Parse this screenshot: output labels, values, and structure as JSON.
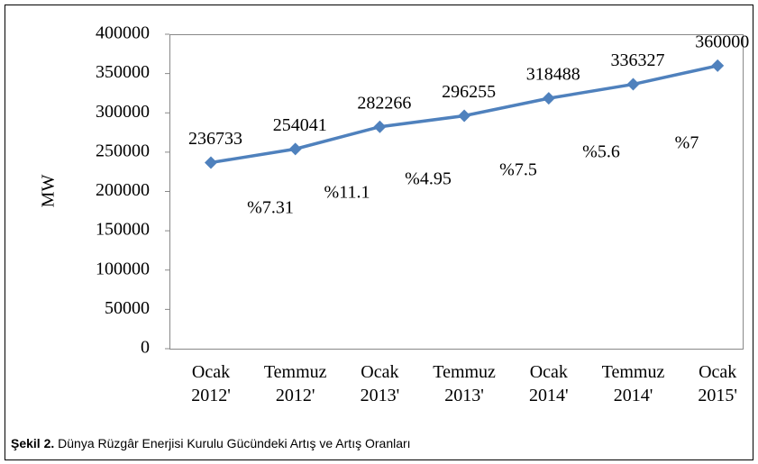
{
  "chart_data": {
    "type": "line",
    "ylabel": "MW",
    "categories": [
      "Ocak 2012'",
      "Temmuz 2012'",
      "Ocak 2013'",
      "Temmuz 2013'",
      "Ocak 2014'",
      "Temmuz 2014'",
      "Ocak 2015'"
    ],
    "series": [
      {
        "name": "MW",
        "color": "#4f81bd",
        "values": [
          236733,
          254041,
          282266,
          296255,
          318488,
          336327,
          360000
        ]
      }
    ],
    "annotations": [
      "%7.31",
      "%11.1",
      "%4.95",
      "%7.5",
      "%5.6",
      "%7"
    ],
    "ylim": [
      0,
      400000
    ],
    "yticks": [
      0,
      50000,
      100000,
      150000,
      200000,
      250000,
      300000,
      350000,
      400000
    ],
    "grid": false
  },
  "caption": {
    "label": "Şekil 2.",
    "text": "Dünya Rüzgâr Enerjisi Kurulu Gücündeki Artış ve Artış Oranları"
  }
}
